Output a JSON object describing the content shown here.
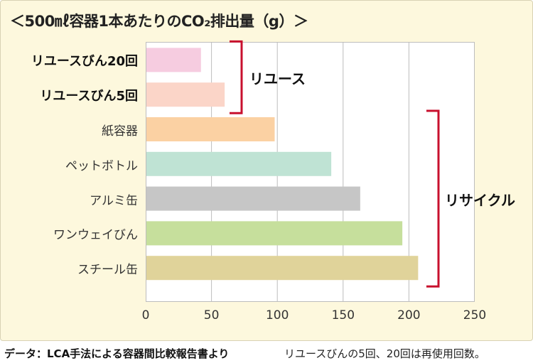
{
  "title": "＜500㎖容器1本あたりのCO₂排出量（g）＞",
  "chart_data": {
    "type": "bar",
    "orientation": "horizontal",
    "categories": [
      "リユースびん20回",
      "リユースびん5回",
      "紙容器",
      "ペットボトル",
      "アルミ缶",
      "ワンウェイびん",
      "スチール缶"
    ],
    "values": [
      42,
      60,
      98,
      141,
      163,
      195,
      207
    ],
    "bar_colors": [
      "#f6cce0",
      "#fbd5c8",
      "#fbd1a3",
      "#bfe3d4",
      "#c6c6c6",
      "#c6df9c",
      "#e0d39a"
    ],
    "xlim": [
      0,
      250
    ],
    "x_ticks": [
      0,
      50,
      100,
      150,
      200,
      250
    ],
    "grid": "vertical",
    "bracket_color": "#c8102e",
    "groups": [
      {
        "label": "リユース",
        "categories": [
          "リユースびん20回",
          "リユースびん5回"
        ]
      },
      {
        "label": "リサイクル",
        "categories": [
          "紙容器",
          "ペットボトル",
          "アルミ缶",
          "ワンウェイびん",
          "スチール缶"
        ]
      }
    ]
  },
  "footer": {
    "source": "データ：LCA手法による容器間比較報告書より",
    "note": "リユースびんの5回、20回は再使用回数。"
  }
}
